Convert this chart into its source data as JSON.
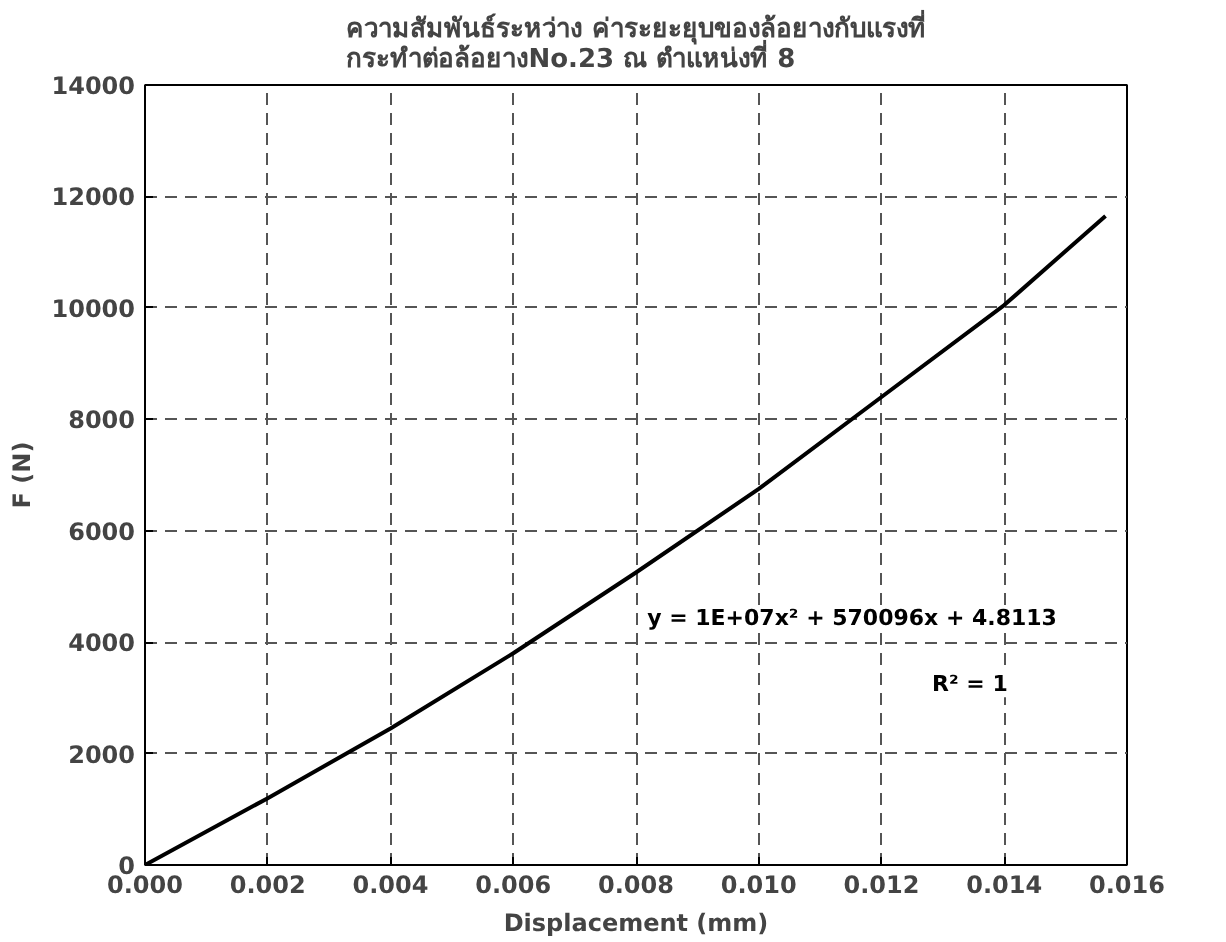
{
  "chart_data": {
    "type": "line",
    "title": "ความสัมพันธ์ระหว่าง ค่าระยะยุบของล้อยางกับแรงที่\nกระทำต่อล้อยางNo.23 ณ ตำแหน่งที่ 8",
    "xlabel": "Displacement (mm)",
    "ylabel": "F (N)",
    "x": [
      0,
      0.002,
      0.004,
      0.006,
      0.008,
      0.01,
      0.012,
      0.014,
      0.01565
    ],
    "series": [
      {
        "color": "#000000",
        "values": [
          0,
          1200,
          2450,
          3800,
          5250,
          6750,
          8400,
          10050,
          11650
        ]
      }
    ],
    "xlim": [
      0,
      0.016
    ],
    "ylim": [
      0,
      14000
    ],
    "xticks": [
      {
        "value": 0,
        "label": "0.000"
      },
      {
        "value": 0.002,
        "label": "0.002"
      },
      {
        "value": 0.004,
        "label": "0.004"
      },
      {
        "value": 0.006,
        "label": "0.006"
      },
      {
        "value": 0.008,
        "label": "0.008"
      },
      {
        "value": 0.01,
        "label": "0.010"
      },
      {
        "value": 0.012,
        "label": "0.012"
      },
      {
        "value": 0.014,
        "label": "0.014"
      },
      {
        "value": 0.016,
        "label": "0.016"
      }
    ],
    "yticks": [
      0,
      2000,
      4000,
      6000,
      8000,
      10000,
      12000,
      14000
    ],
    "annotations": [
      "y = 1E+07x² + 570096x + 4.8113",
      "R² = 1"
    ],
    "grid": true,
    "line_style": "solid"
  }
}
